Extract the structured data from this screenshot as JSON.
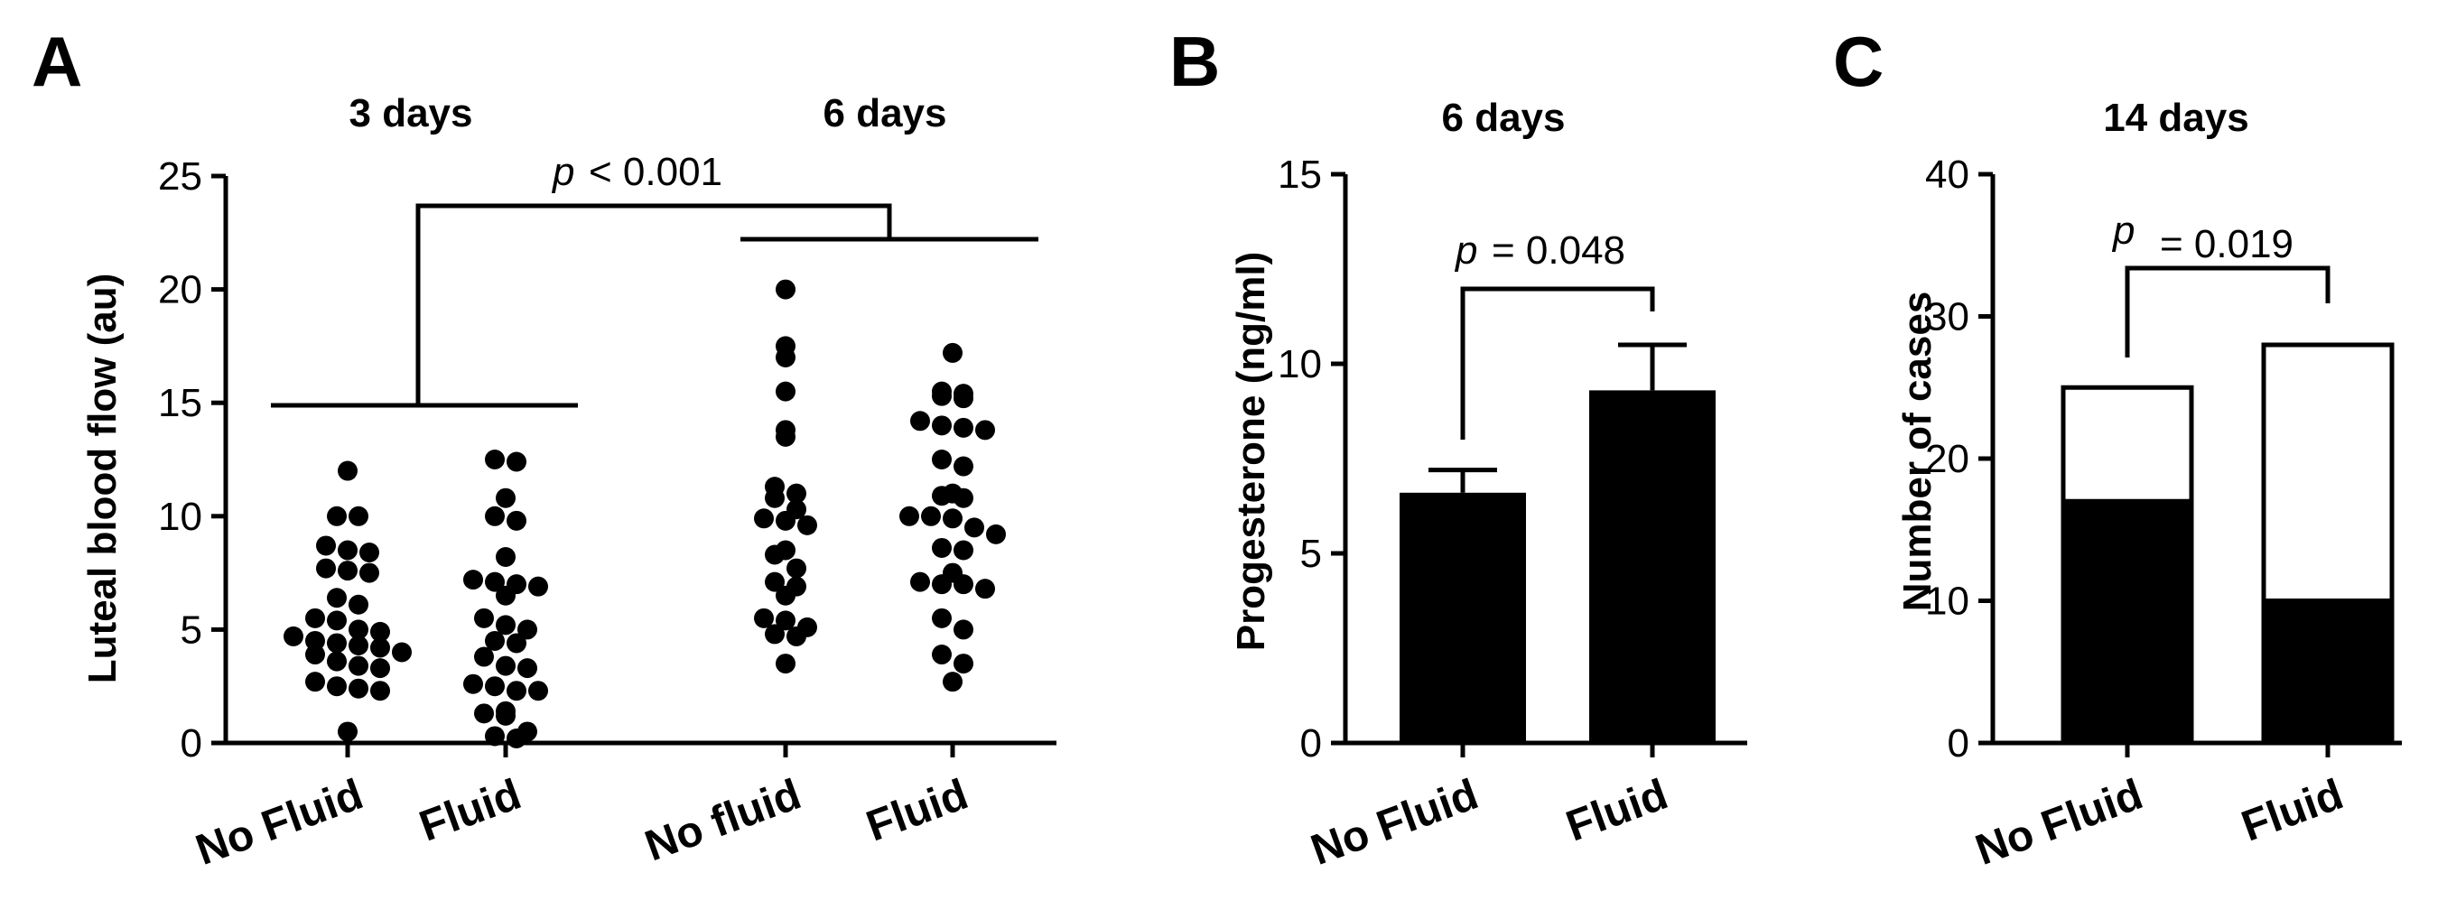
{
  "panels": {
    "A": {
      "letter": "A",
      "group_titles": [
        "3 days",
        "6 days"
      ],
      "ylabel": "Luteal blood flow (au)",
      "p_prefix": "p",
      "p_text": "< 0.001"
    },
    "B": {
      "letter": "B",
      "title": "6 days",
      "ylabel": "Progesterone (ng/ml)",
      "p_prefix": "p",
      "p_text": "= 0.048"
    },
    "C": {
      "letter": "C",
      "title": "14 days",
      "ylabel": "Number of cases",
      "p_prefix": "p",
      "p_text": "= 0.019"
    }
  },
  "chart_data": [
    {
      "type": "scatter",
      "panel": "A",
      "ylabel": "Luteal blood flow (au)",
      "ylim": [
        0,
        25
      ],
      "yticks": [
        0,
        5,
        10,
        15,
        20,
        25
      ],
      "categories": [
        "No Fluid",
        "Fluid",
        "No fluid",
        "Fluid"
      ],
      "groups": [
        "3 days",
        "3 days",
        "6 days",
        "6 days"
      ],
      "series": [
        {
          "values": [
            12.0,
            10.0,
            10.0,
            8.7,
            8.5,
            8.4,
            7.7,
            7.6,
            7.5,
            6.4,
            6.1,
            5.5,
            5.4,
            5.0,
            4.9,
            4.7,
            4.5,
            4.4,
            4.3,
            4.2,
            4.0,
            3.9,
            3.6,
            3.4,
            3.3,
            2.7,
            2.5,
            2.4,
            2.3,
            0.5
          ]
        },
        {
          "values": [
            12.5,
            12.4,
            10.8,
            10.0,
            9.8,
            8.2,
            7.2,
            7.1,
            7.0,
            6.9,
            6.5,
            5.5,
            5.2,
            5.0,
            4.5,
            4.4,
            3.8,
            3.4,
            3.3,
            2.6,
            2.5,
            2.3,
            2.3,
            1.4,
            1.3,
            1.2,
            0.5,
            0.3,
            0.2
          ]
        },
        {
          "values": [
            20.0,
            17.5,
            17.0,
            15.5,
            13.8,
            13.5,
            11.3,
            11.0,
            10.8,
            10.3,
            9.9,
            9.8,
            9.6,
            8.5,
            8.3,
            7.7,
            7.1,
            6.9,
            6.5,
            5.5,
            5.4,
            5.1,
            4.8,
            4.7,
            3.5
          ]
        },
        {
          "values": [
            17.2,
            15.5,
            15.4,
            15.3,
            15.2,
            14.2,
            14.0,
            13.9,
            13.8,
            12.5,
            12.2,
            11.0,
            10.9,
            10.8,
            10.0,
            10.0,
            9.9,
            9.5,
            9.2,
            8.6,
            8.5,
            7.5,
            7.1,
            7.0,
            7.0,
            6.8,
            5.5,
            5.0,
            3.9,
            3.5,
            2.7
          ]
        }
      ]
    },
    {
      "type": "bar",
      "panel": "B",
      "title": "6 days",
      "ylabel": "Progesterone (ng/ml)",
      "ylim": [
        0,
        15
      ],
      "yticks": [
        0,
        5,
        10,
        15
      ],
      "categories": [
        "No Fluid",
        "Fluid"
      ],
      "values": [
        6.6,
        9.3
      ],
      "error_upper": [
        7.2,
        10.5
      ]
    },
    {
      "type": "bar",
      "panel": "C",
      "title": "14 days",
      "ylabel": "Number of cases",
      "ylim": [
        0,
        40
      ],
      "yticks": [
        0,
        10,
        20,
        30,
        40
      ],
      "categories": [
        "No Fluid",
        "Fluid"
      ],
      "stacked": true,
      "series": [
        {
          "color": "#000000",
          "values": [
            17,
            10
          ]
        },
        {
          "color": "#ffffff",
          "values": [
            8,
            18
          ]
        }
      ],
      "totals": [
        25,
        28
      ]
    }
  ]
}
